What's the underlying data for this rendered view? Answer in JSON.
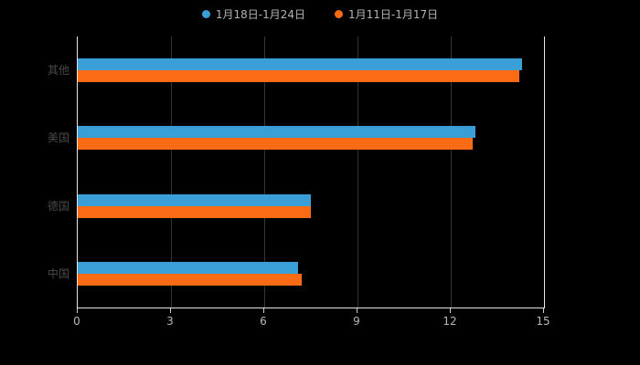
{
  "chart_data": {
    "type": "bar",
    "orientation": "horizontal",
    "title": "",
    "categories": [
      "其他",
      "美国",
      "德国",
      "中国"
    ],
    "series": [
      {
        "name": "1月18日-1月24日",
        "color": "#3a9fd6",
        "values": [
          14.3,
          12.8,
          7.5,
          7.1
        ]
      },
      {
        "name": "1月11日-1月17日",
        "color": "#fb6a14",
        "values": [
          14.2,
          12.7,
          7.5,
          7.2
        ]
      }
    ],
    "xlim": [
      0,
      15
    ],
    "x_ticks": [
      0,
      3,
      6,
      9,
      12,
      15
    ],
    "legend_position": "top",
    "grid": true,
    "background": "#000000",
    "axis_line_color": "#e6e6e6",
    "grid_line_color": "#333333",
    "category_label_color": "#4a4a4a",
    "tick_label_color": "#b8b8b8",
    "legend_text_color": "#b3b3b3"
  }
}
